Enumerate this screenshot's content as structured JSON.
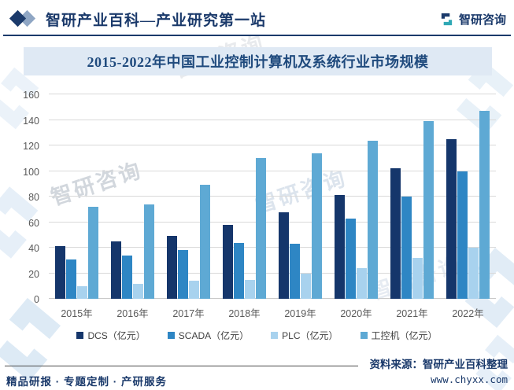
{
  "header": {
    "brand_title": "智研产业百科—产业研究第一站",
    "corner_logo_text": "智研咨询"
  },
  "chart_data": {
    "type": "bar",
    "title": "2015-2022年中国工业控制计算机及系统行业市场规模",
    "categories": [
      "2015年",
      "2016年",
      "2017年",
      "2018年",
      "2019年",
      "2020年",
      "2021年",
      "2022年"
    ],
    "series": [
      {
        "name": "DCS（亿元）",
        "color": "#15366b",
        "values": [
          41,
          45,
          49,
          58,
          68,
          81,
          102,
          125
        ]
      },
      {
        "name": "SCADA（亿元）",
        "color": "#2e86c4",
        "values": [
          31,
          34,
          38,
          44,
          43,
          63,
          80,
          100
        ]
      },
      {
        "name": "PLC（亿元）",
        "color": "#a8d2ee",
        "values": [
          10,
          12,
          14,
          15,
          20,
          24,
          32,
          40
        ]
      },
      {
        "name": "工控机（亿元）",
        "color": "#5ea9d4",
        "values": [
          72,
          74,
          89,
          110,
          114,
          124,
          139,
          147
        ]
      }
    ],
    "ylim": [
      0,
      160
    ],
    "ytick_step": 20,
    "grid": true,
    "legend_position": "bottom"
  },
  "footer": {
    "services": "精品研报 · 专题定制 · 产研服务",
    "source": "资料来源：智研产业百科整理",
    "website": "www.chyxx.com"
  },
  "watermark": {
    "text": "智研咨询"
  },
  "colors": {
    "brand_navy": "#1b3a6b",
    "brand_teal": "#2fa8b5",
    "band_bg": "#dfe9f4",
    "watermark_blue": "#dcе9f5"
  }
}
